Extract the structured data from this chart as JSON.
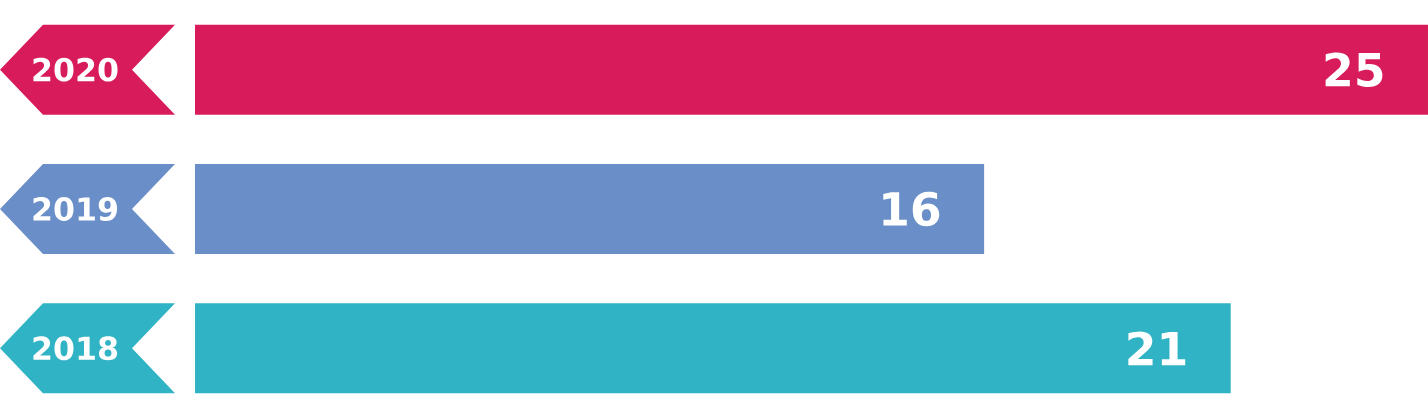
{
  "chart_data": {
    "type": "bar",
    "orientation": "horizontal",
    "categories": [
      "2020",
      "2019",
      "2018"
    ],
    "values": [
      25,
      16,
      21
    ],
    "colors": [
      "#d81b5a",
      "#6a8fc8",
      "#30b3c4"
    ],
    "data_labels": true
  }
}
